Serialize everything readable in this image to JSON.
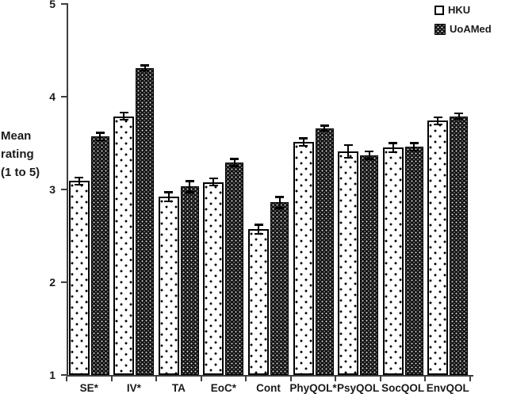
{
  "chart_data": {
    "type": "bar",
    "title": "",
    "ylabel": "Mean rating (1 to 5)",
    "ylabel_lines": [
      "Mean",
      "rating",
      "(1 to 5)"
    ],
    "ylim": [
      1,
      5
    ],
    "y_ticks": [
      5,
      4,
      3,
      2,
      1
    ],
    "grid": false,
    "legend_position": "top-right",
    "categories": [
      "SE*",
      "IV*",
      "TA",
      "EoC*",
      "Cont",
      "PhyQOL*",
      "PsyQOL",
      "SocQOL",
      "EnvQOL"
    ],
    "series": [
      {
        "name": "HKU",
        "pattern": "white-black-dots",
        "values": [
          3.09,
          3.79,
          2.92,
          3.08,
          2.57,
          3.51,
          3.41,
          3.45,
          3.74
        ],
        "errors": [
          0.05,
          0.05,
          0.06,
          0.05,
          0.06,
          0.05,
          0.08,
          0.06,
          0.05
        ]
      },
      {
        "name": "UoAMed",
        "pattern": "black-white-dots",
        "values": [
          3.57,
          4.31,
          3.03,
          3.29,
          2.86,
          3.66,
          3.37,
          3.46,
          3.79
        ],
        "errors": [
          0.05,
          0.04,
          0.07,
          0.05,
          0.07,
          0.04,
          0.05,
          0.05,
          0.04
        ]
      }
    ],
    "colors": {
      "axis": "#3d3d3d",
      "bar_outline": "#000000",
      "hku_fill": "#ffffff",
      "uoamed_fill": "#121212",
      "text": "#1a1a1a"
    }
  }
}
